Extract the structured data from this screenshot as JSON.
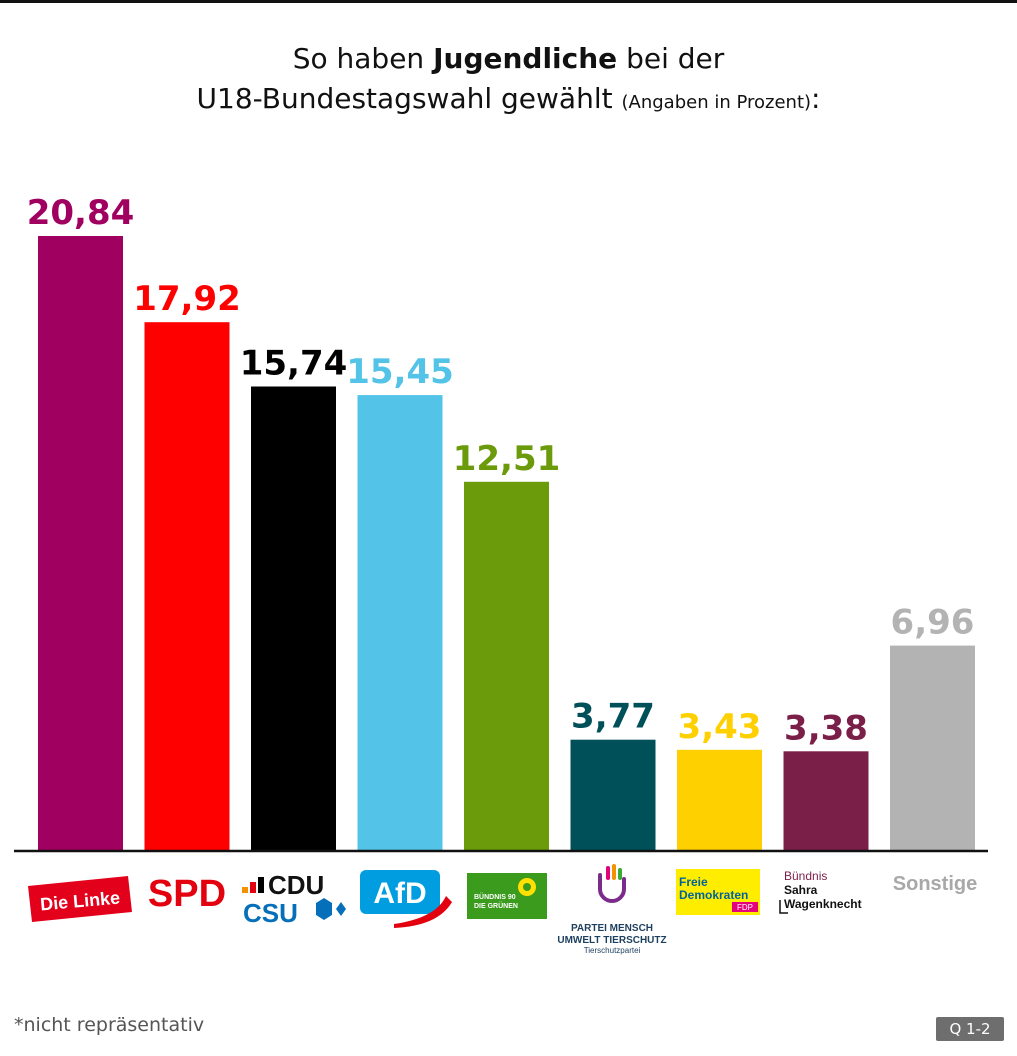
{
  "title": {
    "line1_pre": "So haben",
    "line1_bold": "Jugendliche",
    "line1_post": "bei der",
    "line2_main": "U18-Bundestagswahl gewählt",
    "line2_small": "(Angaben in Prozent)",
    "line2_colon": ":"
  },
  "chart_data": {
    "type": "bar",
    "title": "So haben Jugendliche bei der U18-Bundestagswahl gewählt (Angaben in Prozent):",
    "categories": [
      "Die Linke",
      "SPD",
      "CDU CSU",
      "AfD",
      "Bündnis 90 Die Grünen",
      "Partei Mensch Umwelt Tierschutz",
      "Freie Demokraten FDP",
      "Bündnis Sahra Wagenknecht",
      "Sonstige"
    ],
    "values": [
      20.84,
      17.92,
      15.74,
      15.45,
      12.51,
      3.77,
      3.43,
      3.38,
      6.96
    ],
    "value_labels": [
      "20,84",
      "17,92",
      "15,74",
      "15,45",
      "12,51",
      "3,77",
      "3,43",
      "3,38",
      "6,96"
    ],
    "colors": [
      "#a0005f",
      "#ff0000",
      "#000000",
      "#53c3e8",
      "#6b9a0b",
      "#00505a",
      "#ffd000",
      "#7a1f48",
      "#b3b3b3"
    ],
    "ylim": [
      0,
      21
    ],
    "xlabel": "",
    "ylabel": "",
    "grid": false,
    "legend": "none"
  },
  "logos": {
    "linke": "Die Linke",
    "spd": "SPD",
    "cdu": "CDU",
    "csu": "CSU",
    "afd": "AfD",
    "gruene_1": "BÜNDNIS 90",
    "gruene_2": "DIE GRÜNEN",
    "tierschutz_1": "PARTEI MENSCH",
    "tierschutz_2": "UMWELT TIERSCHUTZ",
    "tierschutz_3": "Tierschutzpartei",
    "fdp_1": "Freie",
    "fdp_2": "Demokraten",
    "fdp_3": "FDP",
    "bsw_1": "Bündnis",
    "bsw_2": "Sahra",
    "bsw_3": "Wagenknecht",
    "sonstige": "Sonstige"
  },
  "footnote": "*nicht repräsentativ",
  "badge": "Q 1-2"
}
